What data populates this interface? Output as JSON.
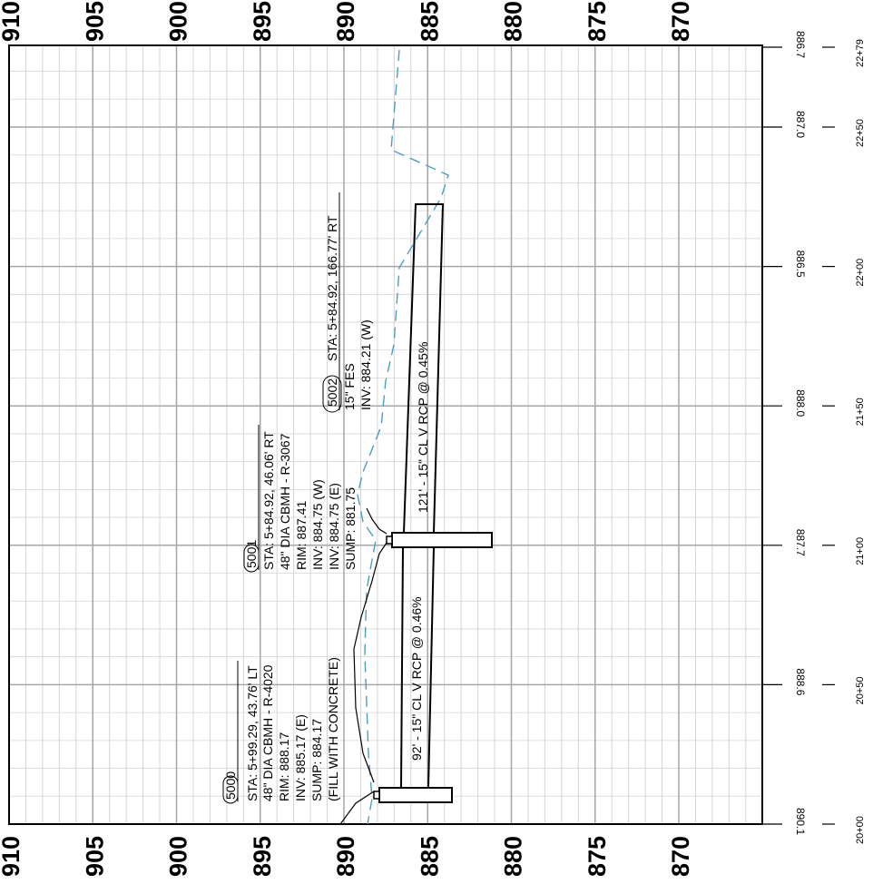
{
  "elevation_axis": {
    "labels_top": [
      "910",
      "905",
      "900",
      "895",
      "890",
      "885",
      "880",
      "875",
      "870"
    ],
    "labels_bottom": [
      "910",
      "905",
      "900",
      "895",
      "890",
      "885",
      "880",
      "875",
      "870"
    ],
    "values": [
      910,
      905,
      900,
      895,
      890,
      885,
      880,
      875,
      870
    ]
  },
  "station_axis": {
    "stations": [
      "20+00",
      "20+50",
      "21+00",
      "21+50",
      "22+00",
      "22+50",
      "22+79"
    ],
    "ground_elevations": [
      "890.1",
      "888.6",
      "887.7",
      "888.0",
      "886.5",
      "887.0",
      "886.7"
    ]
  },
  "structures": {
    "s5000": {
      "id": "5000",
      "lines": [
        "STA: 5+99.29, 43.76' LT",
        "48\" DIA CBMH - R-4020",
        "RIM: 888.17",
        "INV: 885.17 (E)",
        "SUMP: 884.17",
        "(FILL WITH CONCRETE)"
      ]
    },
    "s5001": {
      "id": "5001",
      "lines": [
        "STA: 5+84.92, 46.06' RT",
        "48\" DIA CBMH - R-3067",
        "RIM: 887.41",
        "INV: 884.75 (W)",
        "INV: 884.75 (E)",
        "SUMP: 881.75"
      ]
    },
    "s5002": {
      "id": "5002",
      "sta": "STA: 5+84.92, 166.77' RT",
      "lines": [
        "15\" FES",
        "INV: 884.21 (W)"
      ]
    }
  },
  "pipes": {
    "p1": "92' - 15\" CL V RCP @ 0.46%",
    "p2": "121' - 15\" CL V RCP @ 0.45%"
  },
  "colors": {
    "grid_major": "#a6a6a6",
    "grid_minor": "#d4d4d4",
    "existing_ground": "#4a9ec4",
    "ink": "#000000"
  }
}
